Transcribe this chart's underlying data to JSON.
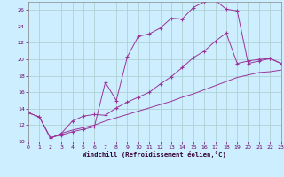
{
  "xlabel": "Windchill (Refroidissement éolien,°C)",
  "bg_color": "#cceeff",
  "grid_color": "#aacccc",
  "line_color": "#993399",
  "xmin": 0,
  "xmax": 23,
  "ymin": 10,
  "ymax": 27,
  "yticks": [
    10,
    12,
    14,
    16,
    18,
    20,
    22,
    24,
    26
  ],
  "series1_x": [
    0,
    1,
    2,
    3,
    4,
    5,
    6,
    7,
    8,
    9,
    10,
    11,
    12,
    13,
    14,
    15,
    16,
    17,
    18,
    19,
    20,
    21,
    22,
    23
  ],
  "series1_y": [
    13.5,
    13.0,
    10.5,
    10.8,
    11.2,
    11.5,
    11.8,
    17.2,
    15.0,
    20.3,
    22.8,
    23.1,
    23.8,
    25.0,
    24.9,
    26.3,
    27.0,
    27.2,
    26.1,
    25.9,
    19.5,
    19.8,
    20.1,
    19.5
  ],
  "series2_x": [
    0,
    1,
    2,
    3,
    4,
    5,
    6,
    7,
    8,
    9,
    10,
    11,
    12,
    13,
    14,
    15,
    16,
    17,
    18,
    19,
    20,
    21,
    22,
    23
  ],
  "series2_y": [
    13.5,
    13.0,
    10.4,
    11.0,
    12.5,
    13.1,
    13.3,
    13.2,
    14.1,
    14.8,
    15.4,
    16.0,
    17.0,
    17.9,
    19.0,
    20.2,
    21.0,
    22.2,
    23.2,
    19.5,
    19.8,
    20.0,
    20.1,
    19.5
  ],
  "series3_x": [
    2,
    3,
    4,
    5,
    6,
    7,
    8,
    9,
    10,
    11,
    12,
    13,
    14,
    15,
    16,
    17,
    18,
    19,
    20,
    21,
    22,
    23
  ],
  "series3_y": [
    10.4,
    11.0,
    11.4,
    11.7,
    12.0,
    12.5,
    12.9,
    13.3,
    13.7,
    14.1,
    14.5,
    14.9,
    15.4,
    15.8,
    16.3,
    16.8,
    17.3,
    17.8,
    18.1,
    18.4,
    18.5,
    18.7
  ]
}
